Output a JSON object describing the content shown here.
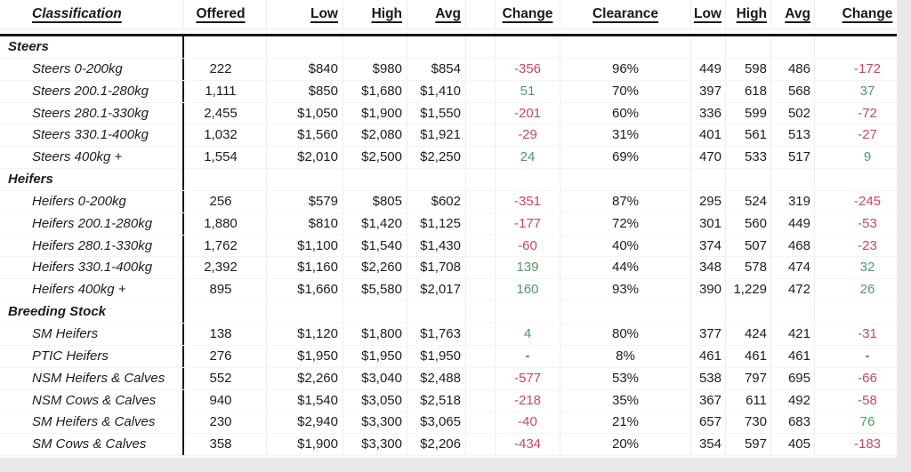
{
  "table": {
    "headers": [
      "Classification",
      "Offered",
      "Low",
      "High",
      "Avg",
      "Change",
      "Clearance",
      "Low",
      "High",
      "Avg",
      "Change"
    ],
    "groups": [
      {
        "label": "Steers",
        "rows": [
          {
            "classification": "Steers 0-200kg",
            "offered": "222",
            "low": "$840",
            "high": "$980",
            "avg": "$854",
            "change": "-356",
            "clearance": "96%",
            "low2": "449",
            "high2": "598",
            "avg2": "486",
            "change2": "-172"
          },
          {
            "classification": "Steers 200.1-280kg",
            "offered": "1,111",
            "low": "$850",
            "high": "$1,680",
            "avg": "$1,410",
            "change": "51",
            "clearance": "70%",
            "low2": "397",
            "high2": "618",
            "avg2": "568",
            "change2": "37"
          },
          {
            "classification": "Steers 280.1-330kg",
            "offered": "2,455",
            "low": "$1,050",
            "high": "$1,900",
            "avg": "$1,550",
            "change": "-201",
            "clearance": "60%",
            "low2": "336",
            "high2": "599",
            "avg2": "502",
            "change2": "-72"
          },
          {
            "classification": "Steers 330.1-400kg",
            "offered": "1,032",
            "low": "$1,560",
            "high": "$2,080",
            "avg": "$1,921",
            "change": "-29",
            "clearance": "31%",
            "low2": "401",
            "high2": "561",
            "avg2": "513",
            "change2": "-27"
          },
          {
            "classification": "Steers 400kg +",
            "offered": "1,554",
            "low": "$2,010",
            "high": "$2,500",
            "avg": "$2,250",
            "change": "24",
            "clearance": "69%",
            "low2": "470",
            "high2": "533",
            "avg2": "517",
            "change2": "9"
          }
        ]
      },
      {
        "label": "Heifers",
        "rows": [
          {
            "classification": "Heifers 0-200kg",
            "offered": "256",
            "low": "$579",
            "high": "$805",
            "avg": "$602",
            "change": "-351",
            "clearance": "87%",
            "low2": "295",
            "high2": "524",
            "avg2": "319",
            "change2": "-245"
          },
          {
            "classification": "Heifers 200.1-280kg",
            "offered": "1,880",
            "low": "$810",
            "high": "$1,420",
            "avg": "$1,125",
            "change": "-177",
            "clearance": "72%",
            "low2": "301",
            "high2": "560",
            "avg2": "449",
            "change2": "-53"
          },
          {
            "classification": "Heifers 280.1-330kg",
            "offered": "1,762",
            "low": "$1,100",
            "high": "$1,540",
            "avg": "$1,430",
            "change": "-60",
            "clearance": "40%",
            "low2": "374",
            "high2": "507",
            "avg2": "468",
            "change2": "-23"
          },
          {
            "classification": "Heifers 330.1-400kg",
            "offered": "2,392",
            "low": "$1,160",
            "high": "$2,260",
            "avg": "$1,708",
            "change": "139",
            "clearance": "44%",
            "low2": "348",
            "high2": "578",
            "avg2": "474",
            "change2": "32"
          },
          {
            "classification": "Heifers 400kg +",
            "offered": "895",
            "low": "$1,660",
            "high": "$5,580",
            "avg": "$2,017",
            "change": "160",
            "clearance": "93%",
            "low2": "390",
            "high2": "1,229",
            "avg2": "472",
            "change2": "26"
          }
        ]
      },
      {
        "label": "Breeding Stock",
        "rows": [
          {
            "classification": "SM Heifers",
            "offered": "138",
            "low": "$1,120",
            "high": "$1,800",
            "avg": "$1,763",
            "change": "4",
            "clearance": "80%",
            "low2": "377",
            "high2": "424",
            "avg2": "421",
            "change2": "-31"
          },
          {
            "classification": "PTIC Heifers",
            "offered": "276",
            "low": "$1,950",
            "high": "$1,950",
            "avg": "$1,950",
            "change": "-",
            "clearance": "8%",
            "low2": "461",
            "high2": "461",
            "avg2": "461",
            "change2": "-"
          },
          {
            "classification": "NSM Heifers & Calves",
            "offered": "552",
            "low": "$2,260",
            "high": "$3,040",
            "avg": "$2,488",
            "change": "-577",
            "clearance": "53%",
            "low2": "538",
            "high2": "797",
            "avg2": "695",
            "change2": "-66"
          },
          {
            "classification": "NSM Cows & Calves",
            "offered": "940",
            "low": "$1,540",
            "high": "$3,050",
            "avg": "$2,518",
            "change": "-218",
            "clearance": "35%",
            "low2": "367",
            "high2": "611",
            "avg2": "492",
            "change2": "-58"
          },
          {
            "classification": "SM Heifers & Calves",
            "offered": "230",
            "low": "$2,940",
            "high": "$3,300",
            "avg": "$3,065",
            "change": "-40",
            "clearance": "21%",
            "low2": "657",
            "high2": "730",
            "avg2": "683",
            "change2": "76"
          },
          {
            "classification": "SM Cows & Calves",
            "offered": "358",
            "low": "$1,900",
            "high": "$3,300",
            "avg": "$2,206",
            "change": "-434",
            "clearance": "20%",
            "low2": "354",
            "high2": "597",
            "avg2": "405",
            "change2": "-183"
          }
        ]
      }
    ]
  },
  "colors": {
    "negative": "#c04a60",
    "positive": "#4f9a63",
    "neutral": "#1d1d1d",
    "text": "#1d1d1d",
    "divider": "#161616",
    "gridline": "#ededed",
    "sheet_background": "#ffffff",
    "page_background": "#e8e8e8"
  }
}
